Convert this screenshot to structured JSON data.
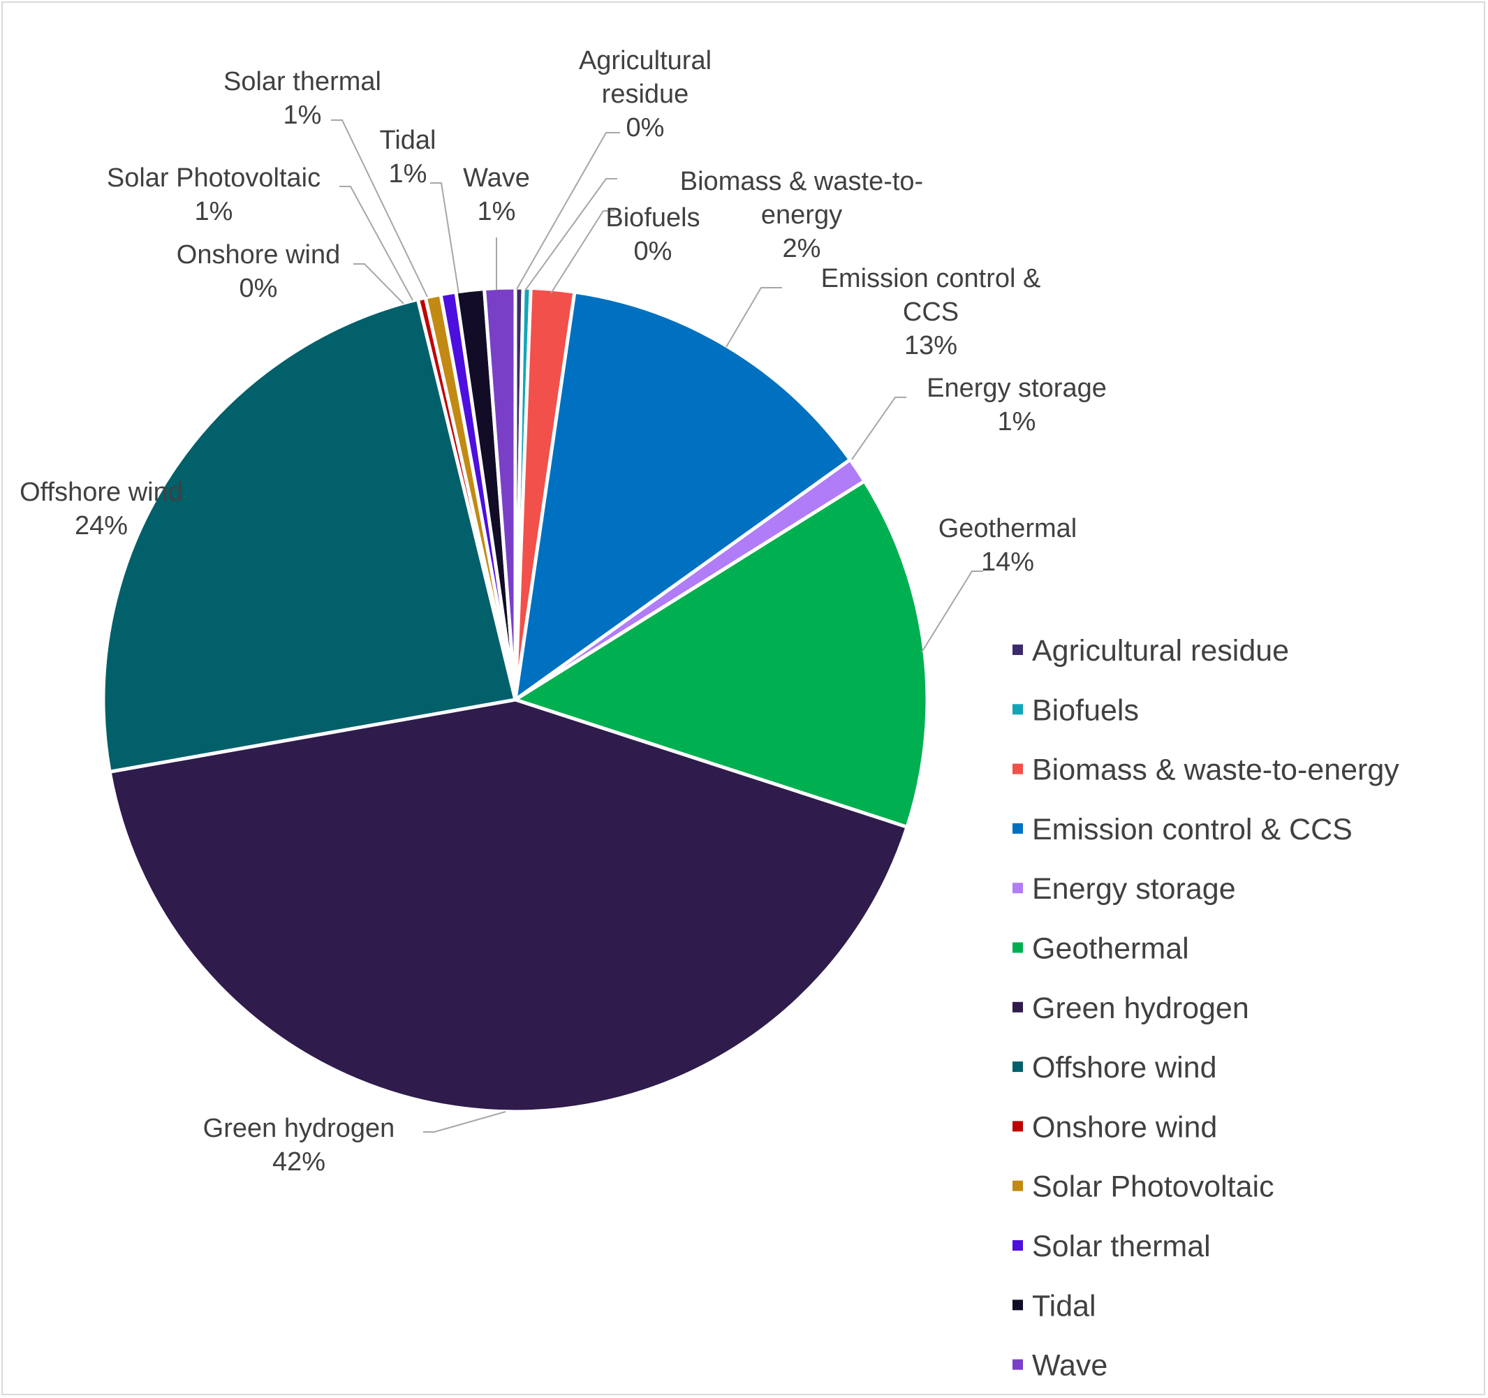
{
  "chart_data": {
    "type": "pie",
    "title": "",
    "slices": [
      {
        "name": "Agricultural residue",
        "value": 0.3,
        "percent_label": "0%",
        "color": "#3c2a6b"
      },
      {
        "name": "Biofuels",
        "value": 0.3,
        "percent_label": "0%",
        "color": "#12a5b8"
      },
      {
        "name": "Biomass & waste-to-energy",
        "value": 1.7,
        "percent_label": "2%",
        "color": "#f2504b"
      },
      {
        "name": "Emission control & CCS",
        "value": 12.8,
        "percent_label": "13%",
        "color": "#0070c0"
      },
      {
        "name": "Energy storage",
        "value": 1.0,
        "percent_label": "1%",
        "color": "#b07cf7"
      },
      {
        "name": "Geothermal",
        "value": 13.9,
        "percent_label": "14%",
        "color": "#00b050"
      },
      {
        "name": "Green hydrogen",
        "value": 42.2,
        "percent_label": "42%",
        "color": "#2f1b4c"
      },
      {
        "name": "Offshore wind",
        "value": 24.0,
        "percent_label": "24%",
        "color": "#02606a"
      },
      {
        "name": "Onshore wind",
        "value": 0.3,
        "percent_label": "0%",
        "color": "#c00000"
      },
      {
        "name": "Solar Photovoltaic",
        "value": 0.6,
        "percent_label": "1%",
        "color": "#c28a13"
      },
      {
        "name": "Solar thermal",
        "value": 0.6,
        "percent_label": "1%",
        "color": "#4d0fe0"
      },
      {
        "name": "Tidal",
        "value": 1.1,
        "percent_label": "1%",
        "color": "#120c26"
      },
      {
        "name": "Wave",
        "value": 1.2,
        "percent_label": "1%",
        "color": "#7a3fc7"
      }
    ],
    "data_labels": [
      {
        "slice": "Agricultural residue",
        "lines": [
          "Agricultural",
          "residue",
          "0%"
        ]
      },
      {
        "slice": "Biofuels",
        "lines": [
          "Biofuels",
          "0%"
        ]
      },
      {
        "slice": "Biomass & waste-to-energy",
        "lines": [
          "Biomass & waste-to-",
          "energy",
          "2%"
        ]
      },
      {
        "slice": "Emission control & CCS",
        "lines": [
          "Emission control &",
          "CCS",
          "13%"
        ]
      },
      {
        "slice": "Energy storage",
        "lines": [
          "Energy storage",
          "1%"
        ]
      },
      {
        "slice": "Geothermal",
        "lines": [
          "Geothermal",
          "14%"
        ]
      },
      {
        "slice": "Green hydrogen",
        "lines": [
          "Green hydrogen",
          "42%"
        ]
      },
      {
        "slice": "Offshore wind",
        "lines": [
          "Offshore wind",
          "24%"
        ]
      },
      {
        "slice": "Onshore wind",
        "lines": [
          "Onshore wind",
          "0%"
        ]
      },
      {
        "slice": "Solar Photovoltaic",
        "lines": [
          "Solar Photovoltaic",
          "1%"
        ]
      },
      {
        "slice": "Solar thermal",
        "lines": [
          "Solar thermal",
          "1%"
        ]
      },
      {
        "slice": "Tidal",
        "lines": [
          "Tidal",
          "1%"
        ]
      },
      {
        "slice": "Wave",
        "lines": [
          "Wave",
          "1%"
        ]
      }
    ],
    "legend": {
      "placement": "right",
      "entries": [
        "Agricultural residue",
        "Biofuels",
        "Biomass & waste-to-energy",
        "Emission control & CCS",
        "Energy storage",
        "Geothermal",
        "Green hydrogen",
        "Offshore wind",
        "Onshore wind",
        "Solar Photovoltaic",
        "Solar thermal",
        "Tidal",
        "Wave"
      ]
    }
  }
}
